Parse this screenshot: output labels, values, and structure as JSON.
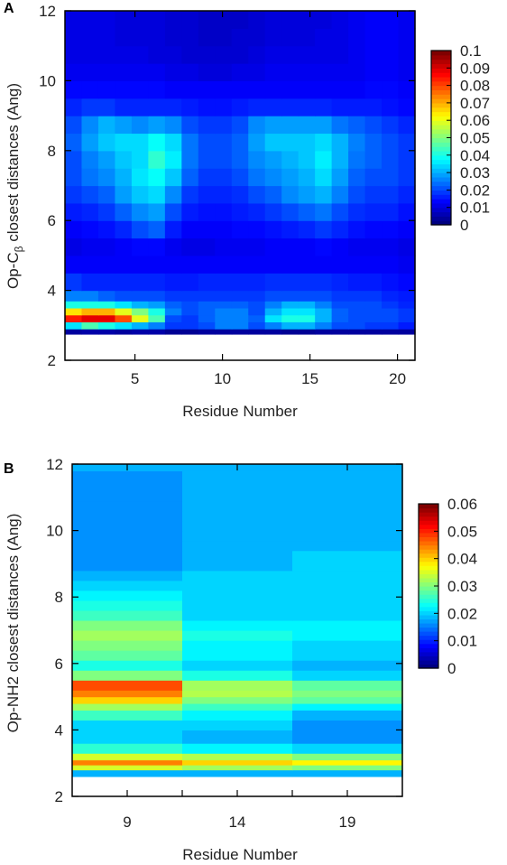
{
  "chart_data": [
    {
      "panel_label": "A",
      "type": "heatmap",
      "xlabel": "Residue Number",
      "ylabel_prefix": "Op-C",
      "ylabel_sub": "β",
      "ylabel_suffix": " closest distances (Ang)",
      "x_min": 1,
      "x_max": 21,
      "ylim": [
        2,
        12
      ],
      "xticks": [
        5,
        10,
        15,
        20
      ],
      "yticks": [
        2,
        4,
        6,
        8,
        10,
        12
      ],
      "x_categories": [
        1,
        2,
        3,
        4,
        5,
        6,
        7,
        8,
        9,
        10,
        11,
        12,
        13,
        14,
        15,
        16,
        17,
        18,
        19,
        20,
        21
      ],
      "y_bins": [
        2.75,
        2.9,
        3.1,
        3.3,
        3.5,
        3.7,
        4.0,
        4.5,
        5.0,
        5.5,
        6.0,
        6.5,
        7.0,
        7.5,
        8.0,
        8.5,
        9.0,
        9.5,
        10.0,
        10.5,
        11.0,
        11.5,
        12.0
      ],
      "colorbar": {
        "vmin": 0,
        "vmax": 0.1,
        "ticks": [
          "0.1",
          "0.09",
          "0.08",
          "0.07",
          "0.06",
          "0.05",
          "0.04",
          "0.03",
          "0.02",
          "0.01",
          "0"
        ]
      },
      "values": [
        [
          0.003,
          0.004,
          0.004,
          0.003,
          0.004,
          0.004,
          0.002,
          0.002,
          0.003,
          0.003,
          0.003,
          0.003,
          0.003,
          0.002,
          0.002,
          0.003,
          0.003,
          0.003,
          0.003,
          0.003,
          0.003
        ],
        [
          0.035,
          0.045,
          0.04,
          0.035,
          0.03,
          0.025,
          0.018,
          0.018,
          0.02,
          0.025,
          0.025,
          0.02,
          0.025,
          0.03,
          0.03,
          0.025,
          0.02,
          0.02,
          0.018,
          0.018,
          0.015
        ],
        [
          0.085,
          0.09,
          0.09,
          0.08,
          0.06,
          0.045,
          0.02,
          0.018,
          0.022,
          0.025,
          0.025,
          0.022,
          0.035,
          0.04,
          0.04,
          0.03,
          0.022,
          0.02,
          0.02,
          0.02,
          0.018
        ],
        [
          0.065,
          0.07,
          0.07,
          0.06,
          0.05,
          0.04,
          0.025,
          0.02,
          0.022,
          0.025,
          0.025,
          0.02,
          0.03,
          0.035,
          0.035,
          0.03,
          0.022,
          0.02,
          0.02,
          0.02,
          0.018
        ],
        [
          0.04,
          0.04,
          0.04,
          0.035,
          0.03,
          0.028,
          0.022,
          0.02,
          0.022,
          0.022,
          0.022,
          0.02,
          0.025,
          0.03,
          0.03,
          0.025,
          0.02,
          0.02,
          0.02,
          0.018,
          0.016
        ],
        [
          0.025,
          0.025,
          0.022,
          0.02,
          0.02,
          0.02,
          0.018,
          0.018,
          0.018,
          0.018,
          0.018,
          0.018,
          0.02,
          0.02,
          0.02,
          0.02,
          0.018,
          0.018,
          0.018,
          0.016,
          0.015
        ],
        [
          0.018,
          0.016,
          0.016,
          0.016,
          0.016,
          0.016,
          0.015,
          0.015,
          0.016,
          0.016,
          0.016,
          0.016,
          0.017,
          0.017,
          0.017,
          0.017,
          0.016,
          0.015,
          0.015,
          0.014,
          0.013
        ],
        [
          0.012,
          0.012,
          0.012,
          0.012,
          0.012,
          0.012,
          0.012,
          0.012,
          0.012,
          0.012,
          0.012,
          0.012,
          0.012,
          0.012,
          0.012,
          0.012,
          0.012,
          0.012,
          0.012,
          0.012,
          0.011
        ],
        [
          0.01,
          0.011,
          0.011,
          0.012,
          0.013,
          0.013,
          0.011,
          0.01,
          0.01,
          0.011,
          0.011,
          0.011,
          0.012,
          0.012,
          0.012,
          0.013,
          0.012,
          0.011,
          0.011,
          0.011,
          0.01
        ],
        [
          0.012,
          0.013,
          0.014,
          0.016,
          0.02,
          0.022,
          0.015,
          0.012,
          0.012,
          0.012,
          0.013,
          0.013,
          0.014,
          0.015,
          0.016,
          0.018,
          0.016,
          0.014,
          0.013,
          0.013,
          0.012
        ],
        [
          0.015,
          0.016,
          0.018,
          0.022,
          0.026,
          0.028,
          0.02,
          0.015,
          0.014,
          0.014,
          0.015,
          0.016,
          0.018,
          0.02,
          0.022,
          0.024,
          0.02,
          0.017,
          0.016,
          0.016,
          0.014
        ],
        [
          0.018,
          0.02,
          0.022,
          0.028,
          0.032,
          0.034,
          0.026,
          0.018,
          0.016,
          0.016,
          0.017,
          0.02,
          0.022,
          0.026,
          0.028,
          0.03,
          0.025,
          0.02,
          0.018,
          0.018,
          0.016
        ],
        [
          0.02,
          0.024,
          0.026,
          0.03,
          0.035,
          0.038,
          0.032,
          0.022,
          0.018,
          0.018,
          0.02,
          0.024,
          0.026,
          0.028,
          0.03,
          0.034,
          0.028,
          0.022,
          0.02,
          0.02,
          0.018
        ],
        [
          0.02,
          0.025,
          0.028,
          0.032,
          0.034,
          0.042,
          0.036,
          0.024,
          0.02,
          0.02,
          0.022,
          0.026,
          0.028,
          0.03,
          0.032,
          0.036,
          0.03,
          0.024,
          0.022,
          0.02,
          0.018
        ],
        [
          0.022,
          0.028,
          0.032,
          0.034,
          0.034,
          0.038,
          0.034,
          0.024,
          0.02,
          0.02,
          0.022,
          0.028,
          0.032,
          0.032,
          0.032,
          0.034,
          0.03,
          0.025,
          0.022,
          0.02,
          0.018
        ],
        [
          0.02,
          0.026,
          0.03,
          0.028,
          0.026,
          0.028,
          0.026,
          0.02,
          0.018,
          0.018,
          0.02,
          0.026,
          0.028,
          0.028,
          0.028,
          0.028,
          0.024,
          0.022,
          0.02,
          0.018,
          0.016
        ],
        [
          0.016,
          0.018,
          0.018,
          0.016,
          0.016,
          0.016,
          0.016,
          0.015,
          0.014,
          0.014,
          0.015,
          0.016,
          0.016,
          0.016,
          0.016,
          0.016,
          0.015,
          0.015,
          0.015,
          0.014,
          0.013
        ],
        [
          0.013,
          0.013,
          0.013,
          0.013,
          0.013,
          0.013,
          0.012,
          0.012,
          0.012,
          0.012,
          0.012,
          0.012,
          0.012,
          0.012,
          0.012,
          0.012,
          0.012,
          0.012,
          0.013,
          0.013,
          0.012
        ],
        [
          0.011,
          0.011,
          0.011,
          0.011,
          0.011,
          0.011,
          0.01,
          0.01,
          0.009,
          0.009,
          0.01,
          0.01,
          0.011,
          0.011,
          0.011,
          0.011,
          0.011,
          0.011,
          0.012,
          0.012,
          0.011
        ],
        [
          0.01,
          0.01,
          0.01,
          0.01,
          0.01,
          0.009,
          0.009,
          0.008,
          0.008,
          0.008,
          0.008,
          0.009,
          0.01,
          0.01,
          0.01,
          0.01,
          0.01,
          0.011,
          0.012,
          0.012,
          0.011
        ],
        [
          0.01,
          0.01,
          0.01,
          0.009,
          0.009,
          0.009,
          0.008,
          0.008,
          0.007,
          0.007,
          0.008,
          0.008,
          0.009,
          0.009,
          0.009,
          0.01,
          0.01,
          0.011,
          0.012,
          0.012,
          0.011
        ],
        [
          0.01,
          0.01,
          0.01,
          0.009,
          0.009,
          0.009,
          0.008,
          0.008,
          0.007,
          0.007,
          0.007,
          0.008,
          0.009,
          0.009,
          0.009,
          0.009,
          0.01,
          0.011,
          0.012,
          0.012,
          0.011
        ],
        [
          0.01,
          0.01,
          0.01,
          0.009,
          0.009,
          0.009,
          0.009,
          0.008,
          0.008,
          0.008,
          0.008,
          0.008,
          0.009,
          0.009,
          0.009,
          0.009,
          0.01,
          0.01,
          0.011,
          0.011,
          0.011
        ]
      ]
    },
    {
      "panel_label": "B",
      "type": "heatmap",
      "xlabel": "Residue Number",
      "ylabel": "Op-NH2 closest distances (Ang)",
      "ylim": [
        2,
        12
      ],
      "x_categories": [
        9,
        14,
        19
      ],
      "xticks": [
        9,
        14,
        19
      ],
      "yticks": [
        2,
        4,
        6,
        8,
        10,
        12
      ],
      "y_bins": [
        2.6,
        2.8,
        2.95,
        3.1,
        3.3,
        3.6,
        4.0,
        4.3,
        4.6,
        4.8,
        5.0,
        5.2,
        5.5,
        5.8,
        6.1,
        6.4,
        6.7,
        7.0,
        7.3,
        7.6,
        7.9,
        8.2,
        8.5,
        8.8,
        9.1,
        9.4,
        9.7,
        10.0,
        10.3,
        10.6,
        10.9,
        11.2,
        11.5,
        11.8
      ],
      "colorbar": {
        "vmin": 0,
        "vmax": 0.06,
        "ticks": [
          "0.06",
          "0.05",
          "0.04",
          "0.03",
          "0.02",
          "0.01",
          "0"
        ]
      },
      "values": [
        [
          0.018,
          0.018,
          0.018
        ],
        [
          0.035,
          0.032,
          0.03
        ],
        [
          0.045,
          0.04,
          0.038
        ],
        [
          0.035,
          0.033,
          0.03
        ],
        [
          0.025,
          0.022,
          0.02
        ],
        [
          0.02,
          0.018,
          0.016
        ],
        [
          0.02,
          0.02,
          0.016
        ],
        [
          0.026,
          0.022,
          0.018
        ],
        [
          0.032,
          0.026,
          0.022
        ],
        [
          0.04,
          0.03,
          0.028
        ],
        [
          0.045,
          0.033,
          0.03
        ],
        [
          0.048,
          0.032,
          0.028
        ],
        [
          0.03,
          0.024,
          0.02
        ],
        [
          0.024,
          0.02,
          0.018
        ],
        [
          0.028,
          0.022,
          0.02
        ],
        [
          0.03,
          0.022,
          0.02
        ],
        [
          0.032,
          0.024,
          0.022
        ],
        [
          0.03,
          0.022,
          0.022
        ],
        [
          0.026,
          0.02,
          0.02
        ],
        [
          0.024,
          0.02,
          0.02
        ],
        [
          0.022,
          0.02,
          0.02
        ],
        [
          0.02,
          0.02,
          0.02
        ],
        [
          0.018,
          0.02,
          0.02
        ],
        [
          0.016,
          0.018,
          0.02
        ],
        [
          0.016,
          0.018,
          0.02
        ],
        [
          0.016,
          0.018,
          0.018
        ],
        [
          0.016,
          0.018,
          0.018
        ],
        [
          0.016,
          0.018,
          0.018
        ],
        [
          0.016,
          0.018,
          0.018
        ],
        [
          0.016,
          0.018,
          0.018
        ],
        [
          0.016,
          0.018,
          0.018
        ],
        [
          0.016,
          0.018,
          0.018
        ],
        [
          0.016,
          0.018,
          0.018
        ],
        [
          0.018,
          0.018,
          0.018
        ]
      ]
    }
  ]
}
